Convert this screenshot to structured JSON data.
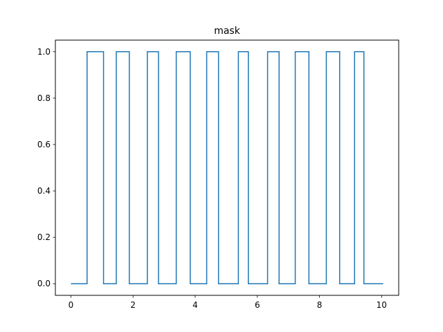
{
  "chart_data": {
    "type": "line",
    "title": "mask",
    "xlabel": "",
    "ylabel": "",
    "xlim": [
      -0.5,
      10.55
    ],
    "ylim": [
      -0.05,
      1.05
    ],
    "x_ticks": [
      0,
      2,
      4,
      6,
      8,
      10
    ],
    "x_tick_labels": [
      "0",
      "2",
      "4",
      "6",
      "8",
      "10"
    ],
    "y_ticks": [
      0.0,
      0.2,
      0.4,
      0.6,
      0.8,
      1.0
    ],
    "y_tick_labels": [
      "0.0",
      "0.2",
      "0.4",
      "0.6",
      "0.8",
      "1.0"
    ],
    "grid": false,
    "series": [
      {
        "color": "#1f77b4",
        "step": true,
        "x": [
          0.0,
          0.52,
          0.52,
          1.05,
          1.05,
          1.46,
          1.46,
          1.88,
          1.88,
          2.46,
          2.46,
          2.82,
          2.82,
          3.39,
          3.39,
          3.84,
          3.84,
          4.37,
          4.37,
          4.75,
          4.75,
          5.39,
          5.39,
          5.71,
          5.71,
          6.33,
          6.33,
          6.7,
          6.7,
          7.22,
          7.22,
          7.66,
          7.66,
          8.22,
          8.22,
          8.65,
          8.65,
          9.13,
          9.13,
          9.43,
          9.43,
          10.05
        ],
        "y": [
          0,
          0,
          1,
          1,
          0,
          0,
          1,
          1,
          0,
          0,
          1,
          1,
          0,
          0,
          1,
          1,
          0,
          0,
          1,
          1,
          0,
          0,
          1,
          1,
          0,
          0,
          1,
          1,
          0,
          0,
          1,
          1,
          0,
          0,
          1,
          1,
          0,
          0,
          1,
          1,
          0,
          0
        ]
      }
    ]
  }
}
